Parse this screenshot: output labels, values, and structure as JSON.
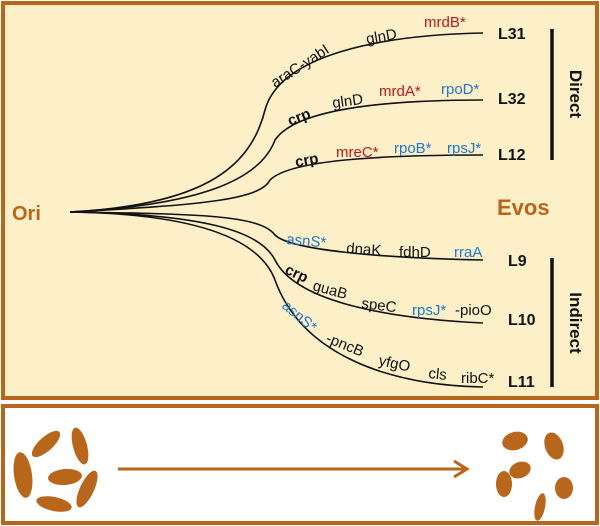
{
  "colors": {
    "brand": "#b8661c",
    "panel": "#fdf0c9",
    "red": "#c0141c",
    "blue": "#1f78c8"
  },
  "origin": "Ori",
  "center_label": "Evos",
  "groups": {
    "direct": "Direct",
    "indirect": "Indirect"
  },
  "lineages": [
    {
      "name": "L31",
      "genes": [
        {
          "t": "araC-yabI",
          "c": "black"
        },
        {
          "t": "glnD",
          "c": "black"
        },
        {
          "t": "mrdB*",
          "c": "red"
        }
      ]
    },
    {
      "name": "L32",
      "genes": [
        {
          "t": "crp",
          "c": "black",
          "bold": true
        },
        {
          "t": "glnD",
          "c": "black"
        },
        {
          "t": "mrdA*",
          "c": "red"
        },
        {
          "t": "rpoD*",
          "c": "blue"
        }
      ]
    },
    {
      "name": "L12",
      "genes": [
        {
          "t": "crp",
          "c": "black",
          "bold": true
        },
        {
          "t": "mreC*",
          "c": "red"
        },
        {
          "t": "rpoB*",
          "c": "blue"
        },
        {
          "t": "rpsJ*",
          "c": "blue"
        }
      ]
    },
    {
      "name": "L9",
      "genes": [
        {
          "t": "asnS*",
          "c": "blue"
        },
        {
          "t": "dnaK",
          "c": "black"
        },
        {
          "t": "fdhD",
          "c": "black"
        },
        {
          "t": "rraA",
          "c": "blue"
        }
      ]
    },
    {
      "name": "L10",
      "genes": [
        {
          "t": "crp",
          "c": "black",
          "bold": true
        },
        {
          "t": "guaB",
          "c": "black"
        },
        {
          "t": "speC",
          "c": "black"
        },
        {
          "t": "rpsJ*",
          "c": "blue"
        },
        {
          "t": "-pioO",
          "c": "black"
        }
      ]
    },
    {
      "name": "L11",
      "genes": [
        {
          "t": "asnS*",
          "c": "blue"
        },
        {
          "t": "-pncB",
          "c": "black"
        },
        {
          "t": "yfgO",
          "c": "black"
        },
        {
          "t": "cls",
          "c": "black"
        },
        {
          "t": "ribC*",
          "c": "black"
        }
      ]
    }
  ]
}
